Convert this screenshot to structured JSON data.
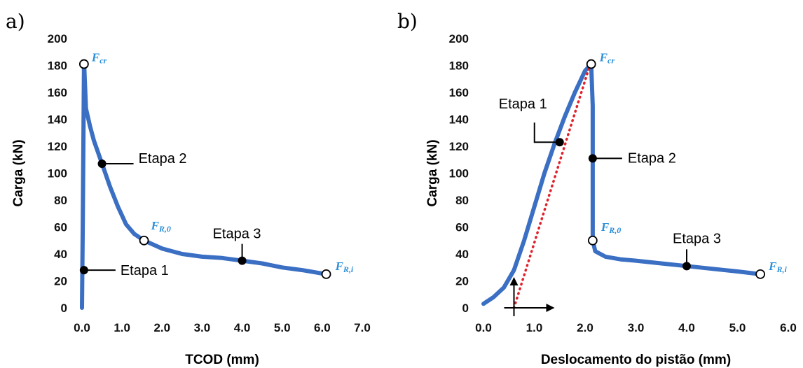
{
  "chart_data": [
    {
      "panel": "a)",
      "type": "line",
      "xlabel": "TCOD (mm)",
      "ylabel": "Carga (kN)",
      "xlim": [
        0,
        7
      ],
      "ylim": [
        0,
        200
      ],
      "xticks": [
        "0.0",
        "1.0",
        "2.0",
        "3.0",
        "4.0",
        "5.0",
        "6.0",
        "7.0"
      ],
      "yticks": [
        "0",
        "20",
        "40",
        "60",
        "80",
        "100",
        "120",
        "140",
        "160",
        "180",
        "200"
      ],
      "grid": false,
      "series": [
        {
          "color": "#3a6fc3",
          "x": [
            0.0,
            0.02,
            0.05,
            0.1,
            0.2,
            0.3,
            0.5,
            0.7,
            0.9,
            1.1,
            1.3,
            1.55,
            2.0,
            2.5,
            3.0,
            3.5,
            4.0,
            4.5,
            5.0,
            5.5,
            6.1
          ],
          "y": [
            0,
            60,
            183,
            148,
            135,
            124,
            107,
            90,
            75,
            62,
            55,
            50,
            44,
            40,
            38,
            37,
            35,
            33,
            30,
            28,
            25
          ]
        }
      ],
      "markers": [
        {
          "label": "F",
          "sub": "cr",
          "x": 0.05,
          "y": 181,
          "style": "open"
        },
        {
          "label": "F",
          "sub": "R,0",
          "x": 1.55,
          "y": 50,
          "style": "open"
        },
        {
          "label": "F",
          "sub": "R,i",
          "x": 6.1,
          "y": 25,
          "style": "open"
        },
        {
          "x": 0.05,
          "y": 28,
          "style": "filled"
        },
        {
          "x": 0.5,
          "y": 107,
          "style": "filled"
        },
        {
          "x": 4.0,
          "y": 35,
          "style": "filled"
        }
      ],
      "annotations": [
        {
          "text": "Etapa 1",
          "x": 0.05,
          "y": 28
        },
        {
          "text": "Etapa 2",
          "x": 0.5,
          "y": 107
        },
        {
          "text": "Etapa 3",
          "x": 4.0,
          "y": 35
        }
      ]
    },
    {
      "panel": "b)",
      "type": "line",
      "xlabel": "Deslocamento do pistão (mm)",
      "ylabel": "Carga (kN)",
      "xlim": [
        0,
        6
      ],
      "ylim": [
        0,
        200
      ],
      "xticks": [
        "0.0",
        "1.0",
        "2.0",
        "3.0",
        "4.0",
        "5.0",
        "6.0"
      ],
      "yticks": [
        "0",
        "20",
        "40",
        "60",
        "80",
        "100",
        "120",
        "140",
        "160",
        "180",
        "200"
      ],
      "grid": false,
      "series": [
        {
          "color": "#3a6fc3",
          "x": [
            0.0,
            0.2,
            0.4,
            0.6,
            0.8,
            1.0,
            1.2,
            1.4,
            1.6,
            1.8,
            2.0,
            2.12,
            2.15,
            2.15,
            2.2,
            2.4,
            2.7,
            3.0,
            3.5,
            4.0,
            4.5,
            5.0,
            5.45
          ],
          "y": [
            3,
            8,
            15,
            28,
            50,
            75,
            100,
            122,
            142,
            160,
            176,
            181,
            150,
            50,
            42,
            38,
            36,
            35,
            33,
            31,
            29,
            27,
            25
          ]
        },
        {
          "color": "#e0202a",
          "style": "dotted",
          "x": [
            0.6,
            2.1
          ],
          "y": [
            0,
            181
          ]
        }
      ],
      "markers": [
        {
          "label": "F",
          "sub": "cr",
          "x": 2.12,
          "y": 181,
          "style": "open"
        },
        {
          "label": "F",
          "sub": "R,0",
          "x": 2.15,
          "y": 50,
          "style": "open"
        },
        {
          "label": "F",
          "sub": "R,i",
          "x": 5.45,
          "y": 25,
          "style": "open"
        },
        {
          "x": 1.5,
          "y": 123,
          "style": "filled"
        },
        {
          "x": 2.15,
          "y": 111,
          "style": "filled"
        },
        {
          "x": 4.0,
          "y": 31,
          "style": "filled"
        }
      ],
      "annotations": [
        {
          "text": "Etapa 1",
          "x": 1.5,
          "y": 123
        },
        {
          "text": "Etapa 2",
          "x": 2.15,
          "y": 111
        },
        {
          "text": "Etapa 3",
          "x": 4.0,
          "y": 31
        }
      ]
    }
  ]
}
